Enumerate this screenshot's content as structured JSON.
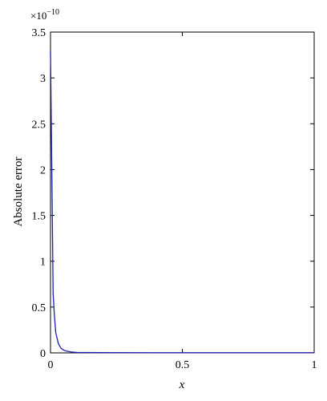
{
  "chart_data": {
    "type": "line",
    "title": "",
    "xlabel": "x",
    "ylabel": "Absolute error",
    "y_multiplier_base": "×10",
    "y_multiplier_exp": "−10",
    "xlim": [
      0,
      1
    ],
    "ylim": [
      0,
      3.5
    ],
    "x_ticks": [
      0,
      0.5,
      1
    ],
    "x_tick_labels": [
      "0",
      "0.5",
      "1"
    ],
    "y_ticks": [
      0,
      0.5,
      1,
      1.5,
      2,
      2.5,
      3,
      3.5
    ],
    "y_tick_labels": [
      "0",
      "0.5",
      "1",
      "1.5",
      "2",
      "2.5",
      "3",
      "3.5"
    ],
    "grid": false,
    "series": [
      {
        "color": "#1f1fb4",
        "x": [
          0,
          0.005,
          0.01,
          0.015,
          0.02,
          0.03,
          0.04,
          0.05,
          0.06,
          0.08,
          0.1,
          0.2,
          0.4,
          0.6,
          0.8,
          1.0
        ],
        "y": [
          3.3,
          2.0,
          0.65,
          0.4,
          0.22,
          0.1,
          0.05,
          0.03,
          0.02,
          0.01,
          0.005,
          0.003,
          0.002,
          0.002,
          0.002,
          0.002
        ]
      }
    ]
  }
}
